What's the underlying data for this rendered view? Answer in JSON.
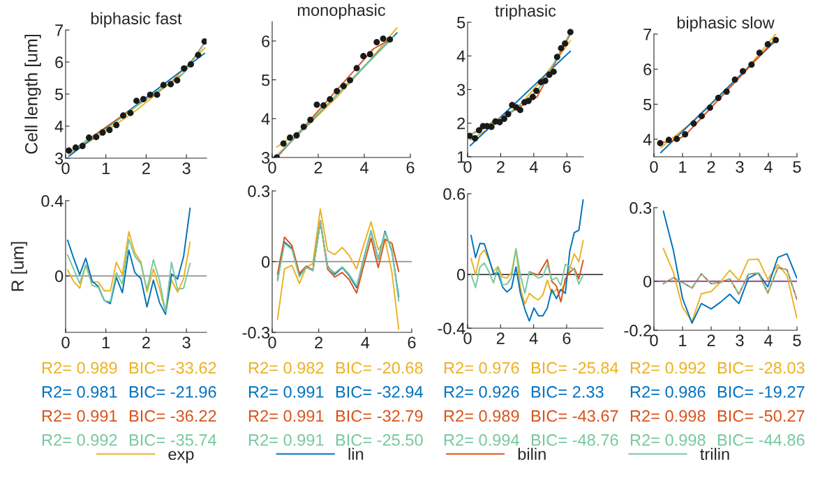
{
  "chart_data": [
    {
      "type": "line",
      "title": "biphasic fast",
      "ylabel": "Cell length [um]",
      "xlim": [
        0,
        3.5
      ],
      "xticks": [
        0,
        1,
        2,
        3
      ],
      "ylim": [
        3,
        7
      ],
      "yticks": [
        3,
        4,
        5,
        6,
        7
      ],
      "series": [
        {
          "type": "scatter",
          "marker": "circle",
          "color": "#1a1a1a",
          "x": [
            0.08,
            0.25,
            0.42,
            0.58,
            0.76,
            0.92,
            1.09,
            1.26,
            1.43,
            1.61,
            1.76,
            1.93,
            2.1,
            2.27,
            2.43,
            2.61,
            2.77,
            2.94,
            3.11,
            3.29,
            3.45
          ],
          "values": [
            3.24,
            3.33,
            3.38,
            3.64,
            3.66,
            3.8,
            3.88,
            4.03,
            4.33,
            4.41,
            4.79,
            4.84,
            4.98,
            4.98,
            5.28,
            5.31,
            5.43,
            5.8,
            5.93,
            6.22,
            6.64
          ]
        },
        {
          "color": "#edb120",
          "x": [
            0.08,
            0.9,
            1.76,
            2.6,
            3.45
          ],
          "values": [
            3.13,
            3.75,
            4.5,
            5.35,
            6.44
          ]
        },
        {
          "color": "#0072bd",
          "x": [
            0.08,
            3.45
          ],
          "values": [
            3.06,
            6.27
          ]
        },
        {
          "color": "#d95319",
          "x": [
            0.08,
            2.9,
            3.45
          ],
          "values": [
            3.17,
            5.62,
            6.6
          ]
        },
        {
          "color": "#77c8a0",
          "x": [
            0.08,
            1.0,
            2.0,
            2.85,
            3.0,
            3.45
          ],
          "values": [
            3.2,
            3.9,
            4.85,
            5.55,
            5.75,
            6.6
          ]
        }
      ]
    },
    {
      "type": "line",
      "title": "monophasic",
      "xlim": [
        0,
        6
      ],
      "xticks": [
        0,
        2,
        4,
        6
      ],
      "ylim": [
        3,
        6.5
      ],
      "yticks": [
        3,
        4,
        5,
        6
      ],
      "series": [
        {
          "type": "scatter",
          "marker": "circle",
          "color": "#1a1a1a",
          "x": [
            0.2,
            0.49,
            0.77,
            1.06,
            1.37,
            1.66,
            1.94,
            2.23,
            2.51,
            2.81,
            3.1,
            3.38,
            3.67,
            3.96,
            4.25,
            4.54,
            4.82,
            5.11
          ],
          "values": [
            3.0,
            3.36,
            3.51,
            3.57,
            3.79,
            3.97,
            4.36,
            4.34,
            4.5,
            4.71,
            4.84,
            4.99,
            5.3,
            5.61,
            5.66,
            5.97,
            6.06,
            6.04
          ]
        },
        {
          "color": "#edb120",
          "x": [
            0.2,
            1.5,
            2.8,
            4.1,
            5.42
          ],
          "values": [
            3.27,
            3.8,
            4.55,
            5.4,
            6.34
          ]
        },
        {
          "color": "#0072bd",
          "x": [
            0.2,
            5.42
          ],
          "values": [
            3.03,
            6.21
          ]
        },
        {
          "color": "#d95319",
          "x": [
            0.2,
            4.4,
            5.11
          ],
          "values": [
            3.0,
            5.8,
            6.03
          ]
        },
        {
          "color": "#77c8a0",
          "x": [
            0.2,
            5.3
          ],
          "values": [
            3.05,
            6.12
          ]
        }
      ]
    },
    {
      "type": "line",
      "title": "triphasic",
      "xlim": [
        0,
        7
      ],
      "xticks": [
        0,
        2,
        4,
        6
      ],
      "ylim": [
        1,
        5
      ],
      "yticks": [
        1,
        2,
        3,
        4,
        5
      ],
      "series": [
        {
          "type": "scatter",
          "marker": "circle",
          "color": "#1a1a1a",
          "x": [
            0.13,
            0.45,
            0.69,
            0.93,
            1.17,
            1.44,
            1.68,
            1.94,
            2.21,
            2.45,
            2.69,
            2.94,
            3.18,
            3.44,
            3.68,
            3.94,
            4.16,
            4.43,
            4.69,
            4.94,
            5.2,
            5.41,
            5.65,
            5.89,
            6.21
          ],
          "values": [
            1.62,
            1.55,
            1.79,
            1.91,
            1.91,
            1.89,
            2.05,
            2.03,
            2.13,
            2.27,
            2.54,
            2.47,
            2.39,
            2.62,
            2.66,
            2.78,
            2.96,
            3.22,
            3.26,
            3.44,
            3.53,
            3.97,
            4.23,
            4.37,
            4.71
          ]
        },
        {
          "color": "#edb120",
          "x": [
            0.16,
            1.5,
            3.0,
            4.5,
            6.21
          ],
          "values": [
            1.5,
            1.9,
            2.45,
            3.3,
            4.45
          ]
        },
        {
          "color": "#0072bd",
          "x": [
            0.16,
            6.21
          ],
          "values": [
            1.33,
            4.14
          ]
        },
        {
          "color": "#d95319",
          "x": [
            0.16,
            4.2,
            6.21
          ],
          "values": [
            1.65,
            2.78,
            4.65
          ]
        },
        {
          "color": "#77c8a0",
          "x": [
            0.16,
            1.0,
            2.5,
            4.2,
            4.9,
            6.21
          ],
          "values": [
            1.65,
            1.85,
            2.3,
            2.95,
            3.5,
            4.7
          ]
        }
      ]
    },
    {
      "type": "line",
      "title": "biphasic slow",
      "xlim": [
        0,
        5
      ],
      "xticks": [
        0,
        1,
        2,
        3,
        4,
        5
      ],
      "ylim": [
        3.5,
        7
      ],
      "yticks": [
        4,
        5,
        6,
        7
      ],
      "series": [
        {
          "type": "scatter",
          "marker": "circle",
          "color": "#1a1a1a",
          "x": [
            0.22,
            0.52,
            0.8,
            1.09,
            1.39,
            1.67,
            1.96,
            2.25,
            2.54,
            2.83,
            3.11,
            3.41,
            3.69,
            3.98,
            4.26
          ],
          "values": [
            3.89,
            3.98,
            4.01,
            4.14,
            4.45,
            4.66,
            4.9,
            5.18,
            5.36,
            5.7,
            5.94,
            6.13,
            6.47,
            6.71,
            6.83
          ]
        },
        {
          "color": "#edb120",
          "x": [
            0.24,
            1.5,
            3.0,
            4.26
          ],
          "values": [
            3.76,
            4.6,
            5.78,
            7.0
          ]
        },
        {
          "color": "#0072bd",
          "x": [
            0.24,
            4.25
          ],
          "values": [
            3.62,
            6.81
          ]
        },
        {
          "color": "#d95319",
          "x": [
            0.24,
            0.8,
            1.1,
            4.26
          ],
          "values": [
            3.9,
            3.98,
            4.12,
            6.87
          ]
        }
      ]
    },
    {
      "type": "line",
      "ylabel": "R [um]",
      "xlim": [
        0,
        3.5
      ],
      "xticks": [
        0,
        1,
        2,
        3
      ],
      "ylim": [
        -0.3,
        0.4
      ],
      "yticks": [
        0,
        0.4
      ],
      "ref_lines": [
        {
          "axis": "y",
          "value": 0,
          "color": "#808080"
        }
      ],
      "annotations": [
        "R2= 0.989",
        "BIC= -33.62",
        "R2= 0.981",
        "BIC= -21.96",
        "R2= 0.991",
        "BIC= -36.22",
        "R2= 0.992",
        "BIC= -35.74"
      ],
      "series": [
        {
          "color": "#edb120",
          "x": [
            0.05,
            0.2,
            0.35,
            0.5,
            0.66,
            0.81,
            0.96,
            1.11,
            1.26,
            1.41,
            1.57,
            1.72,
            1.87,
            2.02,
            2.18,
            2.33,
            2.48,
            2.63,
            2.78,
            2.93,
            3.09
          ],
          "values": [
            0.032,
            -0.029,
            -0.065,
            0.058,
            -0.032,
            -0.032,
            -0.079,
            -0.079,
            0.072,
            0.007,
            0.235,
            0.122,
            0.075,
            -0.086,
            0.036,
            -0.065,
            -0.194,
            -0.022,
            -0.086,
            -0.014,
            0.18
          ]
        },
        {
          "color": "#0072bd",
          "x": [
            0.05,
            0.2,
            0.35,
            0.5,
            0.66,
            0.81,
            0.96,
            1.11,
            1.26,
            1.41,
            1.57,
            1.72,
            1.87,
            2.02,
            2.18,
            2.33,
            2.48,
            2.63,
            2.78,
            2.93,
            3.09
          ],
          "values": [
            0.19,
            0.094,
            0.007,
            0.094,
            -0.029,
            -0.055,
            -0.13,
            -0.147,
            -0.007,
            -0.089,
            0.137,
            0.017,
            -0.014,
            -0.165,
            -0.022,
            -0.141,
            -0.204,
            0.01,
            -0.017,
            0.104,
            0.36
          ]
        },
        {
          "color": "#77c8a0",
          "x": [
            0.05,
            0.2,
            0.35,
            0.5,
            0.66,
            0.81,
            0.96,
            1.11,
            1.26,
            1.41,
            1.57,
            1.72,
            1.87,
            2.02,
            2.18,
            2.33,
            2.48,
            2.63,
            2.78,
            2.93,
            3.09
          ],
          "values": [
            0.112,
            0.036,
            -0.04,
            0.058,
            -0.05,
            -0.06,
            -0.132,
            -0.137,
            0.017,
            -0.043,
            0.194,
            0.104,
            0.065,
            -0.072,
            0.086,
            -0.022,
            -0.19,
            0.072,
            -0.072,
            -0.065,
            0.068
          ]
        }
      ]
    },
    {
      "type": "line",
      "xlim": [
        0,
        6
      ],
      "xticks": [
        0,
        2,
        4,
        6
      ],
      "ylim": [
        -0.3,
        0.3
      ],
      "yticks": [
        -0.3,
        0,
        0.3
      ],
      "ref_lines": [
        {
          "axis": "y",
          "value": 0,
          "color": "#808080"
        }
      ],
      "annotations": [
        "R2= 0.982",
        "BIC= -20.68",
        "R2= 0.991",
        "BIC= -32.94",
        "R2= 0.991",
        "BIC= -32.79",
        "R2= 0.991",
        "BIC= -25.50"
      ],
      "series": [
        {
          "color": "#edb120",
          "x": [
            0.23,
            0.53,
            0.85,
            1.17,
            1.46,
            1.75,
            2.07,
            2.38,
            2.69,
            3.01,
            3.31,
            3.63,
            3.94,
            4.25,
            4.56,
            4.85,
            5.15,
            5.44
          ],
          "values": [
            -0.244,
            -0.031,
            -0.016,
            -0.093,
            -0.025,
            -0.008,
            0.223,
            0.047,
            0.03,
            0.06,
            0.026,
            -0.031,
            0.072,
            0.169,
            0.05,
            0.095,
            -0.046,
            -0.287
          ]
        },
        {
          "color": "#0072bd",
          "x": [
            0.23,
            0.53,
            0.85,
            1.17,
            1.46,
            1.75,
            2.07,
            2.38,
            2.69,
            3.01,
            3.31,
            3.63,
            3.94,
            4.25,
            4.56,
            4.85,
            5.15,
            5.44
          ],
          "values": [
            -0.076,
            0.083,
            0.057,
            -0.059,
            -0.025,
            -0.036,
            0.169,
            -0.019,
            -0.054,
            -0.025,
            -0.059,
            -0.11,
            0.015,
            0.129,
            0.009,
            0.129,
            0.043,
            -0.15
          ]
        },
        {
          "color": "#d95319",
          "x": [
            0.23,
            0.53,
            0.85,
            1.17,
            1.46,
            1.75,
            2.07,
            2.38,
            2.69,
            3.01,
            3.31,
            3.63,
            3.94,
            4.25,
            4.56,
            4.85,
            5.15,
            5.44
          ],
          "values": [
            -0.054,
            0.104,
            0.068,
            -0.05,
            -0.019,
            -0.036,
            0.174,
            -0.031,
            -0.065,
            -0.046,
            -0.076,
            -0.133,
            -0.014,
            0.1,
            -0.025,
            0.095,
            0.077,
            -0.042
          ]
        },
        {
          "color": "#77c8a0",
          "x": [
            0.23,
            0.53,
            0.85,
            1.17,
            1.46,
            1.75,
            2.07,
            2.38,
            2.69,
            3.01,
            3.31,
            3.63,
            3.94,
            4.25,
            4.56,
            4.85,
            5.15,
            5.44
          ],
          "values": [
            -0.082,
            0.077,
            0.052,
            -0.065,
            -0.023,
            -0.039,
            0.171,
            -0.023,
            -0.048,
            -0.022,
            -0.054,
            -0.103,
            0.011,
            0.132,
            0.007,
            0.123,
            0.049,
            -0.167
          ]
        }
      ]
    },
    {
      "type": "line",
      "xlim": [
        0,
        8.2
      ],
      "xticks": [
        0,
        2,
        4,
        6
      ],
      "ylim": [
        -0.4,
        0.6
      ],
      "yticks": [
        -0.4,
        0,
        0.6
      ],
      "ref_lines": [
        {
          "axis": "y",
          "value": 0,
          "color": "#404040"
        }
      ],
      "annotations": [
        "R2= 0.976",
        "BIC= -25.84",
        "R2= 0.926",
        "BIC= 2.33",
        "R2= 0.989",
        "BIC= -43.67",
        "R2= 0.994",
        "BIC= -48.76"
      ],
      "series": [
        {
          "color": "#edb120",
          "x": [
            0.21,
            0.48,
            0.75,
            1.02,
            1.3,
            1.57,
            1.84,
            2.11,
            2.38,
            2.66,
            2.93,
            3.2,
            3.47,
            3.74,
            4.02,
            4.29,
            4.56,
            4.83,
            5.1,
            5.38,
            5.65,
            5.92,
            6.19,
            6.46,
            6.74,
            7.0
          ],
          "values": [
            0.118,
            -0.004,
            0.143,
            0.182,
            0.104,
            0.02,
            0.059,
            -0.02,
            -0.027,
            0.012,
            0.188,
            -0.102,
            -0.22,
            -0.141,
            -0.171,
            -0.19,
            -0.151,
            -0.043,
            -0.141,
            -0.112,
            -0.122,
            -0.063,
            0.045,
            0.153,
            0.094,
            0.251
          ]
        },
        {
          "color": "#0072bd",
          "x": [
            0.21,
            0.48,
            0.75,
            1.02,
            1.3,
            1.57,
            1.84,
            2.11,
            2.38,
            2.66,
            2.93,
            3.2,
            3.47,
            3.74,
            4.02,
            4.29,
            4.56,
            4.83,
            5.1,
            5.38,
            5.65,
            5.92,
            6.19,
            6.46,
            6.74,
            7.0
          ],
          "values": [
            0.29,
            0.125,
            0.231,
            0.227,
            0.114,
            0.006,
            0.012,
            -0.092,
            -0.131,
            -0.102,
            0.055,
            -0.141,
            -0.259,
            -0.347,
            -0.249,
            -0.308,
            -0.308,
            -0.249,
            -0.112,
            -0.18,
            -0.112,
            -0.141,
            0.173,
            0.31,
            0.329,
            0.555
          ]
        },
        {
          "color": "#d95319",
          "x": [
            3.74,
            4.02,
            4.29,
            4.56,
            4.83,
            5.1,
            5.38,
            5.65,
            5.92,
            6.19,
            6.46,
            6.74,
            7.0
          ],
          "values": [
            0.02,
            0.006,
            -0.004,
            0.055,
            0.11,
            -0.053,
            -0.086,
            -0.204,
            -0.033,
            0.016,
            0.045,
            -0.033,
            0.104
          ]
        },
        {
          "color": "#77c8a0",
          "x": [
            0.21,
            0.48,
            0.75,
            1.02,
            1.3,
            1.57,
            1.84,
            2.11,
            2.38,
            2.66,
            2.93,
            3.2,
            3.47,
            3.74,
            4.02,
            4.29,
            4.56,
            4.83,
            5.1,
            5.38,
            5.65,
            5.92,
            6.19,
            6.46,
            6.74,
            7.0
          ],
          "values": [
            0.004,
            -0.098,
            0.055,
            0.084,
            0.016,
            -0.063,
            0.055,
            -0.078,
            -0.073,
            -0.024,
            0.192,
            -0.004,
            -0.141,
            0.02,
            -0.004,
            -0.027,
            -0.014,
            0.075,
            -0.043,
            -0.024,
            -0.082,
            0.075,
            0.055,
            0.035,
            -0.073,
            -0.004
          ]
        }
      ]
    },
    {
      "type": "line",
      "xlim": [
        0,
        5
      ],
      "xticks": [
        0,
        1,
        2,
        3,
        4,
        5
      ],
      "ylim": [
        -0.2,
        0.3
      ],
      "yticks": [
        -0.2,
        0,
        0.3
      ],
      "ref_lines": [
        {
          "axis": "y",
          "value": 0,
          "color": "#7e2f8e"
        }
      ],
      "legend": "bottom",
      "annotations": [
        "R2= 0.992",
        "BIC= -28.03",
        "R2= 0.986",
        "BIC= -19.27",
        "R2= 0.998",
        "BIC= -50.27",
        "R2= 0.998",
        "BIC= -44.86"
      ],
      "series": [
        {
          "name": "exp",
          "color": "#edb120",
          "x": [
            0.33,
            0.68,
            1.0,
            1.33,
            1.66,
            2.0,
            2.32,
            2.65,
            2.97,
            3.3,
            3.65,
            3.98,
            4.33,
            4.65,
            5.0
          ],
          "values": [
            0.134,
            0.036,
            -0.107,
            -0.164,
            -0.051,
            -0.042,
            -0.004,
            0.045,
            0.003,
            0.088,
            0.09,
            0.007,
            0.068,
            0.023,
            -0.151
          ]
        },
        {
          "name": "lin",
          "color": "#0072bd",
          "x": [
            0.33,
            0.68,
            1.0,
            1.33,
            1.66,
            2.0,
            2.32,
            2.65,
            2.97,
            3.3,
            3.65,
            3.98,
            4.33,
            4.65,
            5.0
          ],
          "values": [
            0.286,
            0.126,
            -0.07,
            -0.171,
            -0.091,
            -0.113,
            -0.086,
            -0.053,
            -0.091,
            0.012,
            0.034,
            -0.023,
            0.097,
            0.112,
            0.012
          ]
        },
        {
          "name": "bilin",
          "color": "#d95319",
          "x": [
            0.33,
            0.68,
            1.0,
            1.33,
            1.66,
            2.0,
            2.32,
            2.65,
            2.97,
            3.3,
            3.65,
            3.98,
            4.33,
            4.65,
            5.0
          ],
          "values": [
            -0.01,
            0.014,
            -0.005,
            -0.028,
            0.03,
            -0.01,
            -0.005,
            0.01,
            -0.053,
            0.028,
            0.034,
            -0.048,
            0.055,
            0.047,
            -0.075
          ]
        },
        {
          "name": "trilin",
          "color": "#77c8a0",
          "line_style": "dashed",
          "x": [
            0.33,
            0.68,
            1.0,
            1.33,
            1.66,
            2.0,
            2.32,
            2.65,
            2.97,
            3.3,
            3.65,
            3.98,
            4.33,
            4.65,
            5.0
          ],
          "values": [
            -0.01,
            0.014,
            -0.005,
            -0.028,
            0.03,
            -0.01,
            -0.005,
            0.01,
            -0.053,
            0.028,
            0.034,
            -0.048,
            0.055,
            0.047,
            -0.075
          ]
        }
      ]
    }
  ]
}
